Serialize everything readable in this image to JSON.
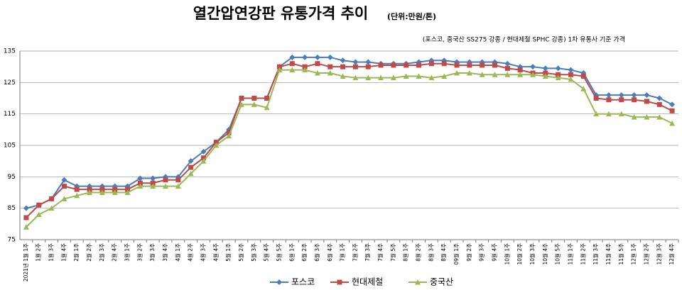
{
  "chart_data": {
    "type": "line",
    "title": "열간압연강판 유통가격 추이",
    "unit": "(단위:만원/톤)",
    "subtitle": "(포스코, 중국산 SS275 강종 / 현대제철 SPHC 강종)  1차 유통사 기준 가격",
    "categories": [
      "2021년 1월 1주",
      "1월 2주",
      "1월 3주",
      "1월 4주",
      "2월 1주",
      "2월 2주",
      "2월 3주",
      "2월 4주",
      "3월 1주",
      "3월 2주",
      "3월 3주",
      "3월 4주",
      "4월 1주",
      "4월 2주",
      "4월 3주",
      "4월 4주",
      "5월 1주",
      "5월 2주",
      "5월 3주",
      "5월 4주",
      "5월 5주",
      "6월 1주",
      "6월 2주",
      "6월 3주",
      "6월 4주",
      "7월 1주",
      "7월 2주",
      "7월 3주",
      "7월 4주",
      "7월 5주",
      "8월 1주",
      "8월 2주",
      "8월 3주",
      "8월 4주",
      "09월 1주",
      "9월 2주",
      "9월 3주",
      "9월 4주",
      "10월 1주",
      "10월 2주",
      "10월 3주",
      "10월 4주",
      "10월 5주",
      "11월 1주",
      "11월 2주",
      "11월 3주",
      "11월 4주",
      "11월 5주",
      "12월 1주",
      "12월 2주",
      "12월 3주",
      "12월 4주"
    ],
    "series": [
      {
        "name": "포스코",
        "color": "#4a7ebb",
        "marker": "diamond",
        "values": [
          85,
          86,
          88,
          94,
          92,
          92,
          92,
          92,
          92,
          94.5,
          94.5,
          95,
          95,
          100,
          103,
          106,
          110,
          120,
          120,
          120,
          130,
          133,
          133,
          133,
          133,
          132,
          131.5,
          131.5,
          131,
          131,
          131,
          131.5,
          132,
          132,
          131.5,
          131.5,
          131.5,
          131.5,
          131,
          130,
          130,
          129.5,
          129.5,
          129,
          128,
          121,
          121,
          121,
          121,
          121,
          120,
          118
        ]
      },
      {
        "name": "현대제철",
        "color": "#be4b48",
        "marker": "square",
        "values": [
          82,
          86,
          88,
          92,
          91,
          91,
          91,
          91,
          91,
          93,
          93,
          94,
          94,
          98,
          101,
          106,
          109,
          120,
          120,
          120,
          130,
          131,
          130,
          131,
          130,
          130,
          130,
          130,
          130.5,
          130.5,
          130.5,
          130.5,
          131,
          131,
          130.5,
          130.5,
          130.5,
          130.5,
          129.5,
          129,
          128,
          128,
          127.5,
          127.5,
          127,
          120,
          119.5,
          119.5,
          119.5,
          119,
          118,
          116
        ]
      },
      {
        "name": "중국산",
        "color": "#98b954",
        "marker": "triangle",
        "values": [
          79,
          83,
          85,
          88,
          89,
          90,
          90,
          90,
          90,
          92,
          92,
          92,
          92,
          96,
          100,
          105,
          108,
          118,
          118,
          117,
          129,
          129,
          129,
          128,
          128,
          127,
          126.5,
          126.5,
          126.5,
          126.5,
          127,
          127,
          126.5,
          127,
          128,
          128,
          127.5,
          127.5,
          127.5,
          127.5,
          127.5,
          127,
          126.5,
          126,
          123,
          115,
          115,
          115,
          114,
          114,
          114,
          112
        ]
      }
    ],
    "ylim": [
      75,
      135
    ],
    "yticks": [
      75,
      85,
      95,
      105,
      115,
      125,
      135
    ],
    "grid": true,
    "legend": "bottom"
  }
}
